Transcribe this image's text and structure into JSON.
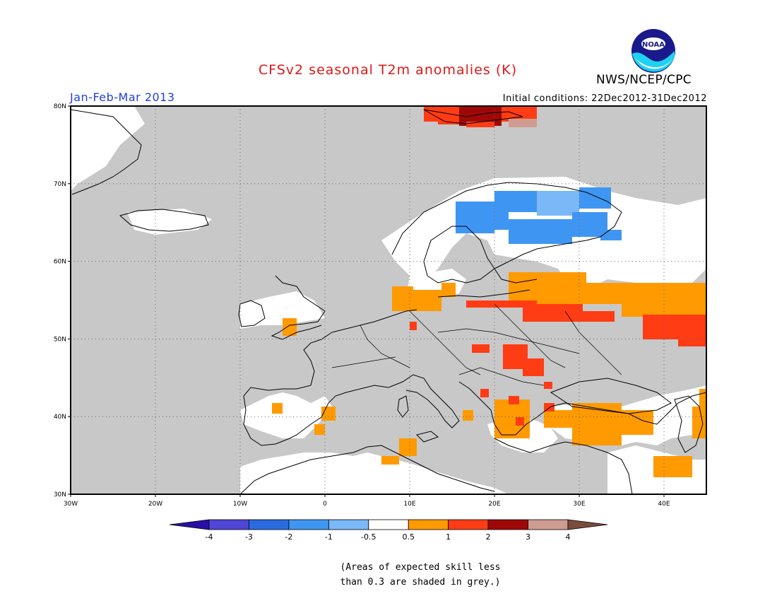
{
  "header": {
    "title": "CFSv2 seasonal T2m anomalies (K)",
    "period": "Jan-Feb-Mar 2013",
    "initial_conditions": "Initial conditions: 22Dec2012-31Dec2012",
    "agency": "NWS/NCEP/CPC",
    "logo_text": "NOAA"
  },
  "map": {
    "region": "Europe",
    "lon_range": [
      -30,
      45
    ],
    "lat_range": [
      30,
      80
    ],
    "lon_labels": [
      "30W",
      "20W",
      "10W",
      "0",
      "10E",
      "20E",
      "30E",
      "40E"
    ],
    "lat_labels": [
      "80N",
      "70N",
      "60N",
      "50N",
      "40N",
      "30N"
    ],
    "grid": "dotted",
    "shading": {
      "grey_low_skill": "#c8c8c8",
      "neutral": "#ffffff"
    }
  },
  "legend": {
    "colors": [
      "#2a0fa6",
      "#4f45d6",
      "#2a6ce0",
      "#3f96f2",
      "#7ab8f7",
      "#ffffff",
      "#ff9a00",
      "#ff3c14",
      "#a00808",
      "#cf9c92",
      "#7a4c3e"
    ],
    "labels": [
      "-4",
      "-3",
      "-2",
      "-1",
      "-0.5",
      "0.5",
      "1",
      "2",
      "3",
      "4"
    ]
  },
  "note": {
    "line1": "(Areas of expected skill less",
    "line2": "than 0.3 are shaded in grey.)"
  }
}
